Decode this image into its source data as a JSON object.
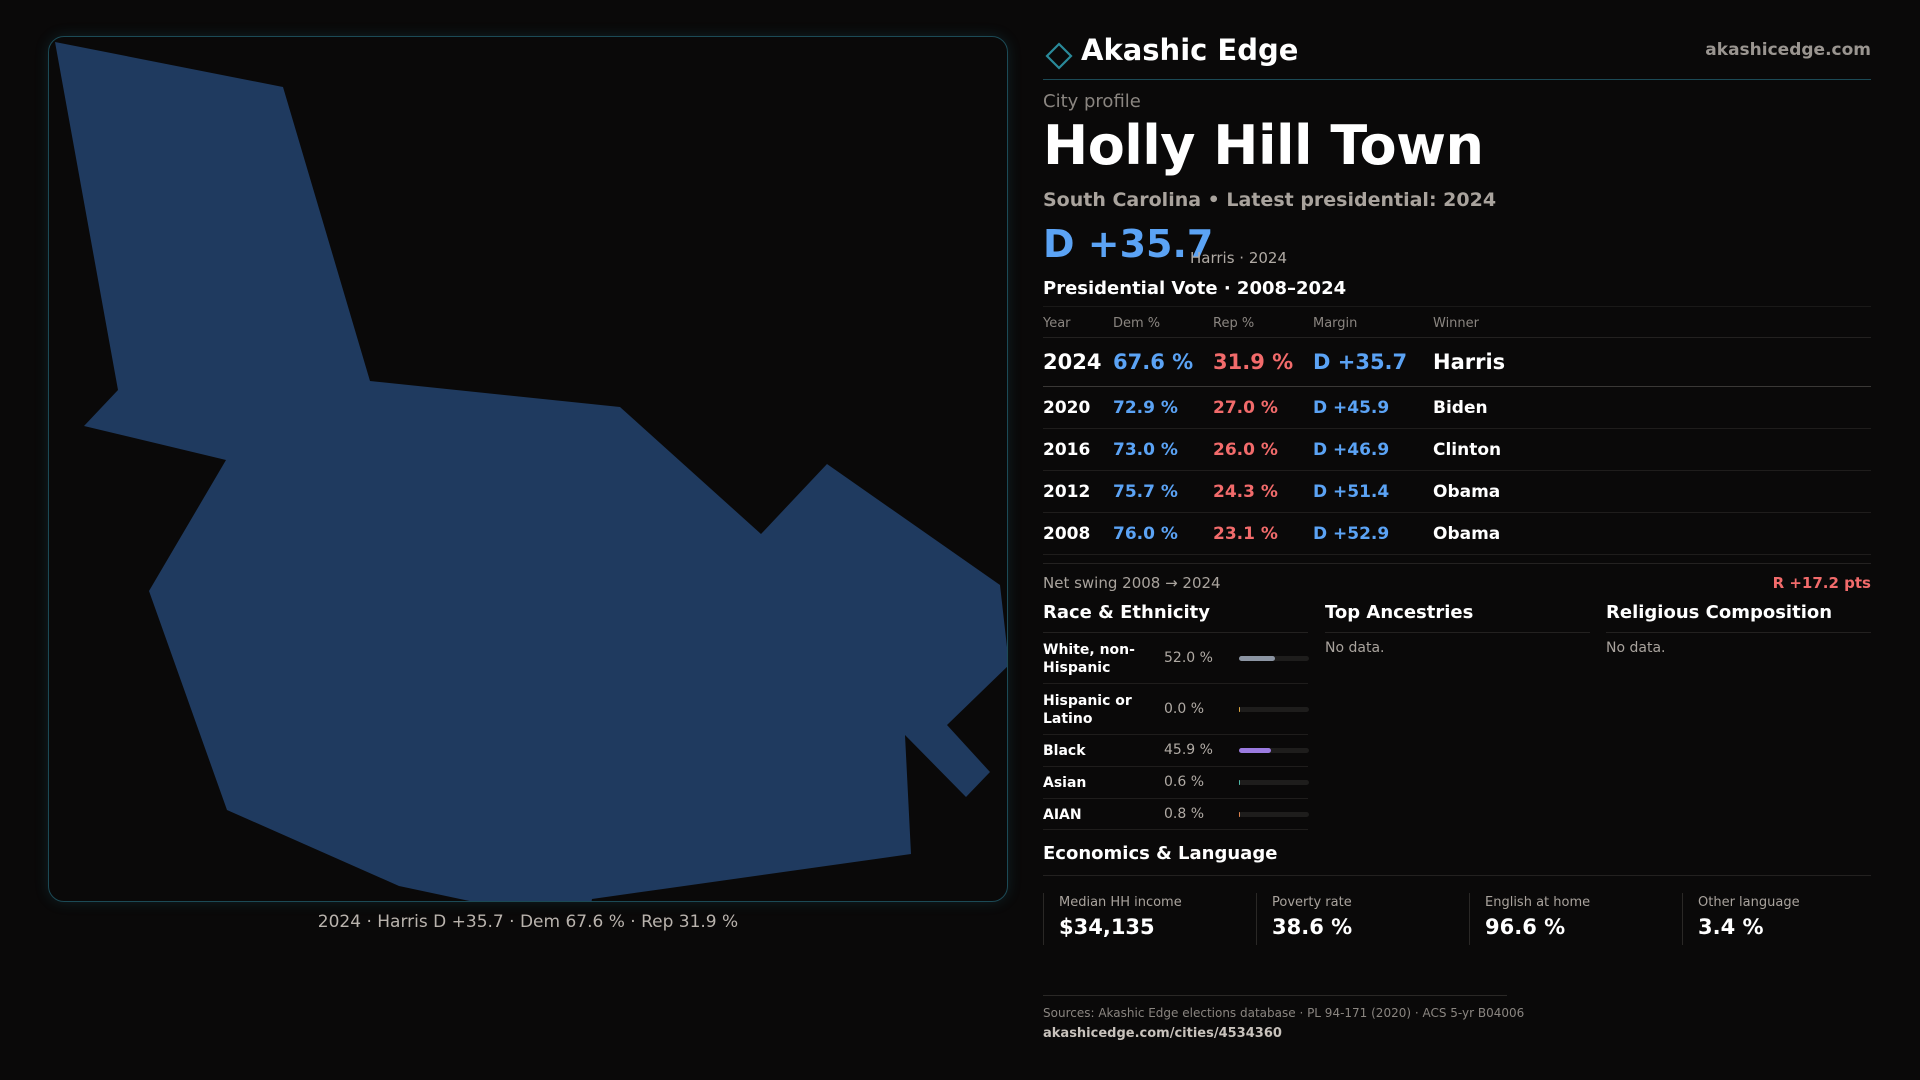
{
  "map": {
    "caption": "2024 · Harris D +35.7 · Dem 67.6 % · Rep 31.9 %",
    "fill_color": "#1f3a5f",
    "border_color": "#1c4a56"
  },
  "brand": {
    "name": "Akashic Edge",
    "url": "akashicedge.com",
    "icon": "diamond-outline-icon"
  },
  "profile": {
    "eyebrow": "City profile",
    "title": "Holly Hill Town",
    "subtitle": "South Carolina • Latest presidential: 2024",
    "headline_margin": "D +35.7",
    "headline_meta": "Harris · 2024"
  },
  "vote_table": {
    "title": "Presidential Vote · 2008–2024",
    "headers": {
      "year": "Year",
      "dem": "Dem %",
      "rep": "Rep %",
      "margin": "Margin",
      "winner": "Winner"
    },
    "rows": [
      {
        "year": "2024",
        "dem": "67.6 %",
        "rep": "31.9 %",
        "margin": "D +35.7",
        "winner": "Harris"
      },
      {
        "year": "2020",
        "dem": "72.9 %",
        "rep": "27.0 %",
        "margin": "D +45.9",
        "winner": "Biden"
      },
      {
        "year": "2016",
        "dem": "73.0 %",
        "rep": "26.0 %",
        "margin": "D +46.9",
        "winner": "Clinton"
      },
      {
        "year": "2012",
        "dem": "75.7 %",
        "rep": "24.3 %",
        "margin": "D +51.4",
        "winner": "Obama"
      },
      {
        "year": "2008",
        "dem": "76.0 %",
        "rep": "23.1 %",
        "margin": "D +52.9",
        "winner": "Obama"
      }
    ],
    "net_swing_label": "Net swing 2008 → 2024",
    "net_swing_value": "R +17.2 pts"
  },
  "colors": {
    "dem": "#5ba3f5",
    "rep": "#f26b6b",
    "accent": "#1c4a56"
  },
  "race": {
    "title": "Race & Ethnicity",
    "rows": [
      {
        "label": "White, non-Hispanic",
        "pct": "52.0 %",
        "value": 52.0,
        "color": "#8c95a3"
      },
      {
        "label": "Hispanic or Latino",
        "pct": "0.0 %",
        "value": 0.0,
        "color": "#d9a441"
      },
      {
        "label": "Black",
        "pct": "45.9 %",
        "value": 45.9,
        "color": "#9b7be0"
      },
      {
        "label": "Asian",
        "pct": "0.6 %",
        "value": 0.6,
        "color": "#4fb8a8"
      },
      {
        "label": "AIAN",
        "pct": "0.8 %",
        "value": 0.8,
        "color": "#d9824f"
      }
    ]
  },
  "ancestries": {
    "title": "Top Ancestries",
    "empty": "No data."
  },
  "religion": {
    "title": "Religious Composition",
    "empty": "No data."
  },
  "economics": {
    "title": "Economics & Language",
    "stats": [
      {
        "label": "Median HH income",
        "value": "$34,135"
      },
      {
        "label": "Poverty rate",
        "value": "38.6 %"
      },
      {
        "label": "English at home",
        "value": "96.6 %"
      },
      {
        "label": "Other language",
        "value": "3.4 %"
      }
    ]
  },
  "footer": {
    "sources": "Sources: Akashic Edge elections database · PL 94-171 (2020) · ACS 5-yr B04006",
    "page_url": "akashicedge.com/cities/4534360"
  }
}
